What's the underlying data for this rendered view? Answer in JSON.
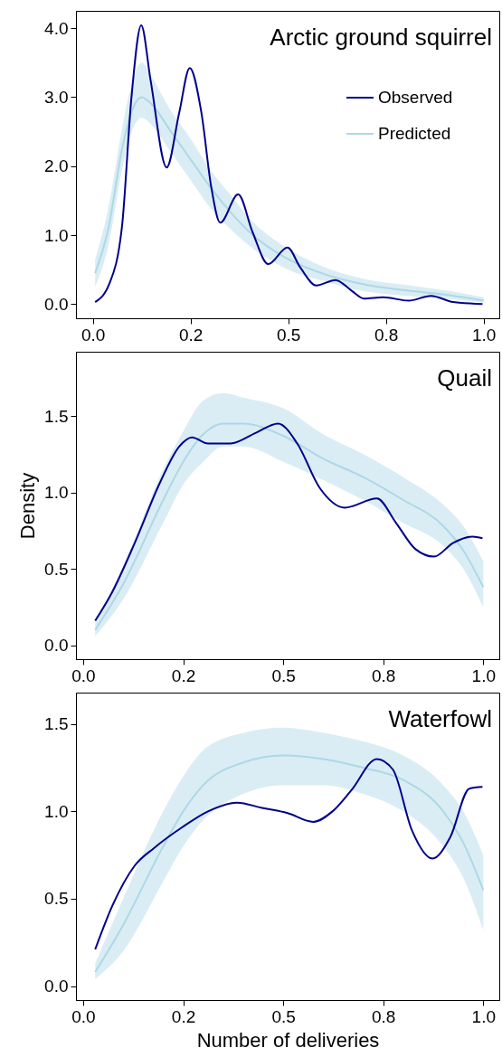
{
  "chart_data": [
    {
      "type": "line",
      "title": "Arctic ground squirrel",
      "legend": "top right",
      "xlim": [
        -0.043,
        1.04
      ],
      "ylim": [
        -0.205,
        4.25
      ],
      "xticks": [
        {
          "value": 0,
          "label": "0.0"
        },
        {
          "value": 0.25,
          "label": "0.2"
        },
        {
          "value": 0.5,
          "label": "0.5"
        },
        {
          "value": 0.75,
          "label": "0.8"
        },
        {
          "value": 1,
          "label": "1.0"
        }
      ],
      "yticks": [
        {
          "value": 0,
          "label": "0.0"
        },
        {
          "value": 1,
          "label": "1.0"
        },
        {
          "value": 2,
          "label": "2.0"
        },
        {
          "value": 3,
          "label": "3.0"
        },
        {
          "value": 4,
          "label": "4.0"
        }
      ],
      "series": [
        {
          "name": "Observed",
          "color": "#00008b",
          "x": [
            0.006,
            0.042,
            0.075,
            0.099,
            0.124,
            0.148,
            0.189,
            0.221,
            0.248,
            0.278,
            0.303,
            0.326,
            0.372,
            0.409,
            0.449,
            0.498,
            0.531,
            0.572,
            0.621,
            0.661,
            0.694,
            0.743,
            0.808,
            0.865,
            0.922,
            0.997
          ],
          "values": [
            0.03,
            0.29,
            1.14,
            3.0,
            4.04,
            3.24,
            1.98,
            2.77,
            3.42,
            2.77,
            1.7,
            1.18,
            1.59,
            1.04,
            0.58,
            0.82,
            0.53,
            0.27,
            0.35,
            0.2,
            0.08,
            0.1,
            0.05,
            0.12,
            0.03,
            0.0
          ]
        },
        {
          "name": "Predicted",
          "color": "#add8e6",
          "x": [
            0.006,
            0.04,
            0.075,
            0.1,
            0.125,
            0.15,
            0.2,
            0.25,
            0.3,
            0.35,
            0.4,
            0.5,
            0.6,
            0.7,
            0.8,
            0.9,
            1.0
          ],
          "values": [
            0.45,
            1.1,
            2.25,
            2.8,
            3.0,
            2.9,
            2.5,
            2.1,
            1.7,
            1.35,
            1.05,
            0.65,
            0.42,
            0.28,
            0.2,
            0.14,
            0.05
          ],
          "lower": [
            0.25,
            0.85,
            1.95,
            2.5,
            2.7,
            2.6,
            2.2,
            1.8,
            1.4,
            1.1,
            0.85,
            0.5,
            0.32,
            0.18,
            0.12,
            0.08,
            0.02
          ],
          "upper": [
            0.65,
            1.4,
            2.55,
            3.2,
            3.5,
            3.3,
            2.8,
            2.4,
            1.95,
            1.6,
            1.25,
            0.8,
            0.52,
            0.36,
            0.28,
            0.2,
            0.1
          ]
        }
      ]
    },
    {
      "type": "line",
      "title": "Quail",
      "ylabel": "Density",
      "xlim": [
        -0.018,
        1.04
      ],
      "ylim": [
        -0.091,
        1.92
      ],
      "xticks": [
        {
          "value": 0,
          "label": "0.0"
        },
        {
          "value": 0.25,
          "label": "0.2"
        },
        {
          "value": 0.5,
          "label": "0.5"
        },
        {
          "value": 0.75,
          "label": "0.8"
        },
        {
          "value": 1,
          "label": "1.0"
        }
      ],
      "yticks": [
        {
          "value": 0,
          "label": "0.0"
        },
        {
          "value": 0.5,
          "label": "0.5"
        },
        {
          "value": 1,
          "label": "1.0"
        },
        {
          "value": 1.5,
          "label": "1.5"
        }
      ],
      "series": [
        {
          "color": "#00008b",
          "x": [
            0.03,
            0.073,
            0.129,
            0.193,
            0.24,
            0.272,
            0.312,
            0.368,
            0.432,
            0.487,
            0.535,
            0.591,
            0.654,
            0.734,
            0.782,
            0.83,
            0.877,
            0.925,
            0.973,
            0.998
          ],
          "values": [
            0.16,
            0.35,
            0.67,
            1.07,
            1.3,
            1.36,
            1.32,
            1.32,
            1.39,
            1.45,
            1.32,
            1.03,
            0.9,
            0.96,
            0.8,
            0.63,
            0.58,
            0.67,
            0.71,
            0.7
          ]
        },
        {
          "color": "#add8e6",
          "x": [
            0.03,
            0.1,
            0.2,
            0.25,
            0.3,
            0.35,
            0.4,
            0.5,
            0.6,
            0.7,
            0.8,
            0.9,
            0.95,
            1.0
          ],
          "values": [
            0.1,
            0.4,
            0.95,
            1.2,
            1.38,
            1.45,
            1.45,
            1.37,
            1.22,
            1.1,
            0.95,
            0.78,
            0.62,
            0.38
          ],
          "lower": [
            0.06,
            0.3,
            0.8,
            1.05,
            1.2,
            1.3,
            1.3,
            1.2,
            1.08,
            0.95,
            0.8,
            0.65,
            0.5,
            0.25
          ],
          "upper": [
            0.15,
            0.52,
            1.15,
            1.4,
            1.6,
            1.65,
            1.62,
            1.55,
            1.38,
            1.25,
            1.1,
            0.92,
            0.78,
            0.55
          ]
        }
      ]
    },
    {
      "type": "line",
      "title": "Waterfowl",
      "xlabel": "Number of deliveries",
      "xlim": [
        -0.018,
        1.04
      ],
      "ylim": [
        -0.08,
        1.68
      ],
      "xticks": [
        {
          "value": 0,
          "label": "0.0"
        },
        {
          "value": 0.25,
          "label": "0.2"
        },
        {
          "value": 0.5,
          "label": "0.5"
        },
        {
          "value": 0.75,
          "label": "0.8"
        },
        {
          "value": 1,
          "label": "1.0"
        }
      ],
      "yticks": [
        {
          "value": 0,
          "label": "0.0"
        },
        {
          "value": 0.5,
          "label": "0.5"
        },
        {
          "value": 1,
          "label": "1.0"
        },
        {
          "value": 1.5,
          "label": "1.5"
        }
      ],
      "series": [
        {
          "color": "#00008b",
          "x": [
            0.03,
            0.073,
            0.129,
            0.177,
            0.248,
            0.312,
            0.384,
            0.447,
            0.511,
            0.575,
            0.623,
            0.67,
            0.734,
            0.774,
            0.822,
            0.873,
            0.917,
            0.965,
            0.998
          ],
          "values": [
            0.21,
            0.46,
            0.69,
            0.79,
            0.91,
            1.0,
            1.05,
            1.02,
            0.99,
            0.94,
            1.0,
            1.12,
            1.3,
            1.24,
            0.89,
            0.73,
            0.85,
            1.13,
            1.14
          ]
        },
        {
          "color": "#add8e6",
          "x": [
            0.03,
            0.1,
            0.2,
            0.25,
            0.3,
            0.4,
            0.5,
            0.6,
            0.7,
            0.8,
            0.9,
            0.95,
            1.0
          ],
          "values": [
            0.08,
            0.35,
            0.8,
            1.0,
            1.15,
            1.28,
            1.32,
            1.3,
            1.25,
            1.18,
            1.0,
            0.82,
            0.55
          ],
          "lower": [
            0.04,
            0.2,
            0.6,
            0.8,
            0.95,
            1.1,
            1.15,
            1.15,
            1.1,
            1.0,
            0.8,
            0.62,
            0.32
          ],
          "upper": [
            0.13,
            0.5,
            1.0,
            1.2,
            1.35,
            1.45,
            1.48,
            1.45,
            1.4,
            1.32,
            1.15,
            1.0,
            0.75
          ]
        }
      ]
    }
  ]
}
